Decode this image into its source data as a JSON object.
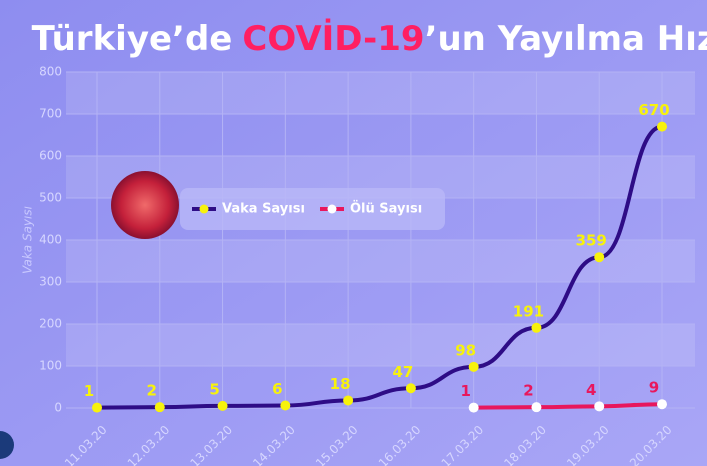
{
  "chart_data": {
    "type": "line",
    "title": [
      "Türkiye’de",
      "COVİD-19",
      "’un Yayılma Hızı"
    ],
    "y_label": "Vaka Sayısı",
    "categories": [
      "11.03.20",
      "12.03.20",
      "13.03.20",
      "14.03.20",
      "15.03.20",
      "16.03.20",
      "17.03.20",
      "18.03.20",
      "19.03.20",
      "20.03.20"
    ],
    "series": [
      {
        "name": "Vaka Sayısı",
        "color": "#2e0c86",
        "marker_color": "#f7f20c",
        "label_color": "#f7f20c",
        "values": [
          1,
          2,
          5,
          6,
          18,
          47,
          98,
          191,
          359,
          670
        ]
      },
      {
        "name": "Ölü Sayısı",
        "color": "#e8175d",
        "marker_color": "#ffffff",
        "label_color": "#e8175d",
        "values": [
          null,
          null,
          null,
          null,
          null,
          null,
          1,
          2,
          4,
          9
        ]
      }
    ],
    "ylim": [
      0,
      800
    ],
    "yticks": [
      0,
      100,
      200,
      300,
      400,
      500,
      600,
      700,
      800
    ],
    "grid": true
  }
}
